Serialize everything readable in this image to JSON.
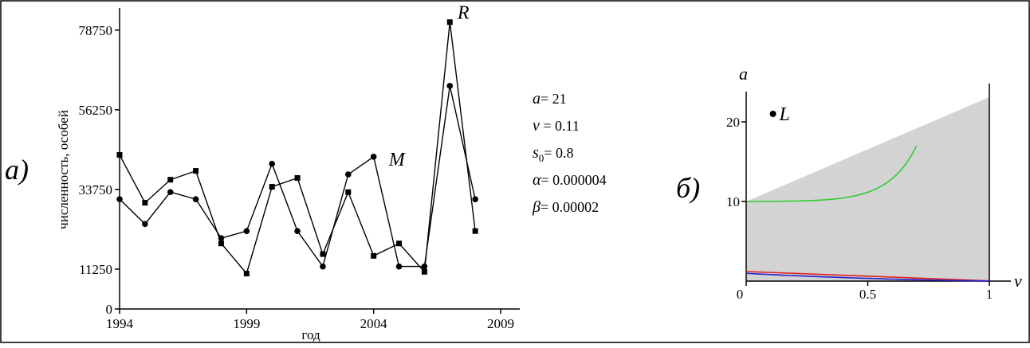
{
  "chart_data": [
    {
      "panel_label": "a)",
      "type": "line",
      "xlabel": "год",
      "ylabel": "численность, особей",
      "xlim": [
        1994,
        2009
      ],
      "ylim": [
        0,
        85000
      ],
      "xticks": [
        "1994",
        "1999",
        "2004",
        "2009"
      ],
      "yticks": [
        "0",
        "11250",
        "33750",
        "56250",
        "78750"
      ],
      "series": [
        {
          "marker": "square",
          "x": [
            1994,
            1995,
            1996,
            1997,
            1998,
            1999,
            2000,
            2001,
            2002,
            2003,
            2004,
            2005,
            2006,
            2007,
            2008
          ],
          "values": [
            43500,
            30000,
            36500,
            39000,
            18500,
            10000,
            34500,
            37000,
            15500,
            33000,
            15000,
            18500,
            10500,
            81000,
            22000
          ]
        },
        {
          "marker": "circle",
          "x": [
            1994,
            1995,
            1996,
            1997,
            1998,
            1999,
            2000,
            2001,
            2002,
            2003,
            2004,
            2005,
            2006,
            2007,
            2008
          ],
          "values": [
            31000,
            24000,
            33000,
            31000,
            20000,
            22000,
            41000,
            22000,
            12000,
            38000,
            43000,
            12000,
            12000,
            63000,
            31000
          ]
        }
      ],
      "annotations": [
        {
          "text": "M",
          "x": 2004.6,
          "y": 40500
        },
        {
          "text": "R",
          "x": 2007.3,
          "y": 82000
        }
      ],
      "params": [
        {
          "sym": "a",
          "sub": "",
          "value": "= 21"
        },
        {
          "sym": "v",
          "sub": "",
          "value": " = 0.11"
        },
        {
          "sym": "s",
          "sub": "0",
          "value": "= 0.8"
        },
        {
          "sym": "α",
          "sub": "",
          "value": "= 0.000004"
        },
        {
          "sym": "β",
          "sub": "",
          "value": "= 0.00002"
        }
      ]
    },
    {
      "panel_label": "б)",
      "type": "area",
      "xlabel": "v",
      "ylabel": "a",
      "xlim": [
        0,
        1
      ],
      "ylim": [
        0,
        24
      ],
      "xticks": [
        "0",
        "0.5",
        "1"
      ],
      "yticks": [
        "10",
        "20"
      ],
      "point": {
        "label": "L",
        "x": 0.11,
        "y": 21
      },
      "colors": {
        "region": "#d3d3d3",
        "upper": "#33cc33",
        "lower_red": "#e02020",
        "lower_blue": "#2222cc"
      }
    }
  ]
}
